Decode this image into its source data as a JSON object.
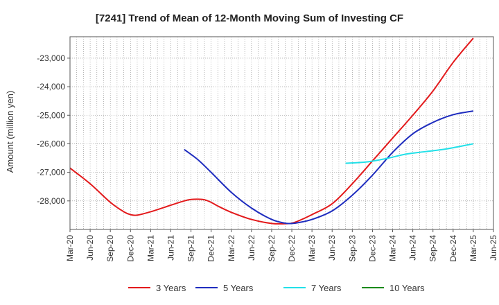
{
  "chart_data": {
    "type": "line",
    "title": "[7241]  Trend of Mean of 12-Month Moving Sum of Investing CF",
    "xlabel": "",
    "ylabel": "Amount (million yen)",
    "ylim": [
      -29000,
      -22250
    ],
    "y_ticks": [
      -28000,
      -27000,
      -26000,
      -25000,
      -24000,
      -23000
    ],
    "y_tick_labels": [
      "-28,000",
      "-27,000",
      "-26,000",
      "-25,000",
      "-24,000",
      "-23,000"
    ],
    "x_tick_labels": [
      "Mar-20",
      "Jun-20",
      "Sep-20",
      "Dec-20",
      "Mar-21",
      "Jun-21",
      "Sep-21",
      "Dec-21",
      "Mar-22",
      "Jun-22",
      "Sep-22",
      "Dec-22",
      "Mar-23",
      "Jun-23",
      "Sep-23",
      "Dec-23",
      "Mar-24",
      "Jun-24",
      "Sep-24",
      "Dec-24",
      "Mar-25",
      "Jun-25"
    ],
    "x_tick_positions": [
      0,
      3,
      6,
      9,
      12,
      15,
      18,
      21,
      24,
      27,
      30,
      33,
      36,
      39,
      42,
      45,
      48,
      51,
      54,
      57,
      60,
      63
    ],
    "grid": true,
    "legend_position": "bottom",
    "series": [
      {
        "name": "3 Years",
        "color": "#e31a1c",
        "x": [
          0,
          3,
          6,
          8,
          9,
          10,
          12,
          15,
          17,
          18,
          19,
          20,
          21,
          22,
          24,
          27,
          30,
          32,
          33,
          34,
          36,
          39,
          42,
          45,
          48,
          51,
          54,
          57,
          60
        ],
        "values": [
          -26850,
          -27400,
          -28050,
          -28380,
          -28480,
          -28500,
          -28380,
          -28150,
          -28000,
          -27950,
          -27940,
          -27960,
          -28050,
          -28180,
          -28400,
          -28650,
          -28790,
          -28800,
          -28780,
          -28700,
          -28480,
          -28100,
          -27400,
          -26600,
          -25800,
          -25000,
          -24150,
          -23150,
          -22300
        ]
      },
      {
        "name": "5 Years",
        "color": "#1f2dbf",
        "x": [
          17,
          19,
          21,
          24,
          27,
          30,
          32,
          33,
          34,
          36,
          39,
          42,
          45,
          48,
          51,
          54,
          57,
          60
        ],
        "values": [
          -26200,
          -26550,
          -27000,
          -27700,
          -28250,
          -28650,
          -28780,
          -28790,
          -28760,
          -28650,
          -28350,
          -27800,
          -27100,
          -26300,
          -25650,
          -25250,
          -24980,
          -24850
        ]
      },
      {
        "name": "7 Years",
        "color": "#22e0e8",
        "x": [
          41,
          44,
          47,
          50,
          53,
          56,
          60
        ],
        "values": [
          -26680,
          -26640,
          -26520,
          -26360,
          -26270,
          -26180,
          -26000
        ]
      },
      {
        "name": "10 Years",
        "color": "#1a8a1a",
        "x": [],
        "values": []
      }
    ]
  }
}
